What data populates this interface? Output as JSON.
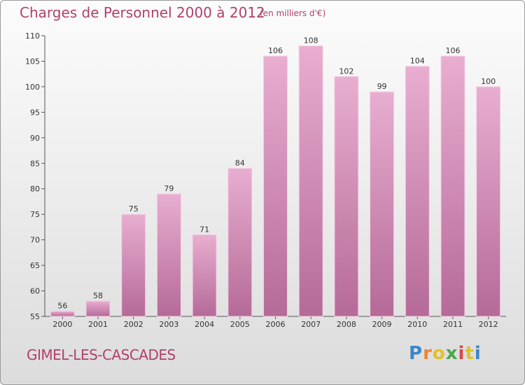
{
  "header": {
    "title": "Charges de Personnel 2000 à 2012",
    "subtitle": "(en milliers d'€)"
  },
  "footer": {
    "commune": "GIMEL-LES-CASCADES",
    "logo_text": "Proxiti"
  },
  "chart_data": {
    "type": "bar",
    "title": "Charges de Personnel 2000 à 2012",
    "subtitle": "(en milliers d'€)",
    "categories": [
      "2000",
      "2001",
      "2002",
      "2003",
      "2004",
      "2005",
      "2006",
      "2007",
      "2008",
      "2009",
      "2010",
      "2011",
      "2012"
    ],
    "values": [
      56,
      58,
      75,
      79,
      71,
      84,
      106,
      108,
      102,
      99,
      104,
      106,
      100
    ],
    "ylim": [
      55,
      110
    ],
    "yticks": [
      55,
      60,
      65,
      70,
      75,
      80,
      85,
      90,
      95,
      100,
      105,
      110
    ],
    "grid": false,
    "bar_color": "#d48fb3"
  }
}
